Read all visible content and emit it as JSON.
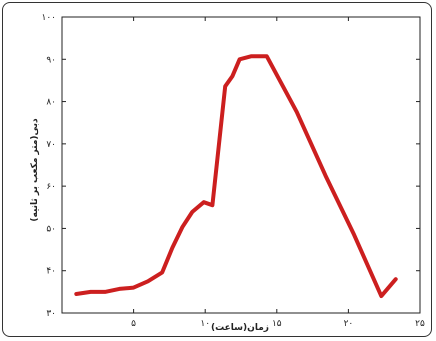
{
  "chart_data": {
    "type": "line",
    "title": "",
    "xlabel": "زمان(ساعت)",
    "ylabel": "دبی(متر مکعب بر ثانیه)",
    "xlim": [
      0,
      25
    ],
    "ylim": [
      30,
      100
    ],
    "x_ticks": [
      5,
      10,
      15,
      20,
      25
    ],
    "x_tick_labels": [
      "۵",
      "۱۰",
      "۱۵",
      "۲۰",
      "۲۵"
    ],
    "y_ticks": [
      30,
      40,
      50,
      60,
      70,
      80,
      90,
      100
    ],
    "y_tick_labels": [
      "۳۰",
      "۴۰",
      "۵۰",
      "۶۰",
      "۷۰",
      "۸۰",
      "۹۰",
      "۱۰۰"
    ],
    "grid": false,
    "series": [
      {
        "color": "#cc1f1f",
        "x": [
          1,
          2,
          3,
          4,
          5,
          6,
          7,
          7.7,
          8.4,
          9.1,
          9.9,
          10.5,
          11.4,
          11.9,
          12.4,
          13.2,
          14.3,
          16.4,
          18.4,
          20.4,
          22.3,
          23.3
        ],
        "y": [
          34.5,
          35,
          35,
          35.7,
          36,
          37.5,
          39.6,
          45.4,
          50.3,
          53.9,
          56.2,
          55.5,
          83.6,
          86,
          90,
          90.7,
          90.7,
          77.5,
          62.5,
          48.5,
          34,
          38
        ]
      }
    ]
  }
}
